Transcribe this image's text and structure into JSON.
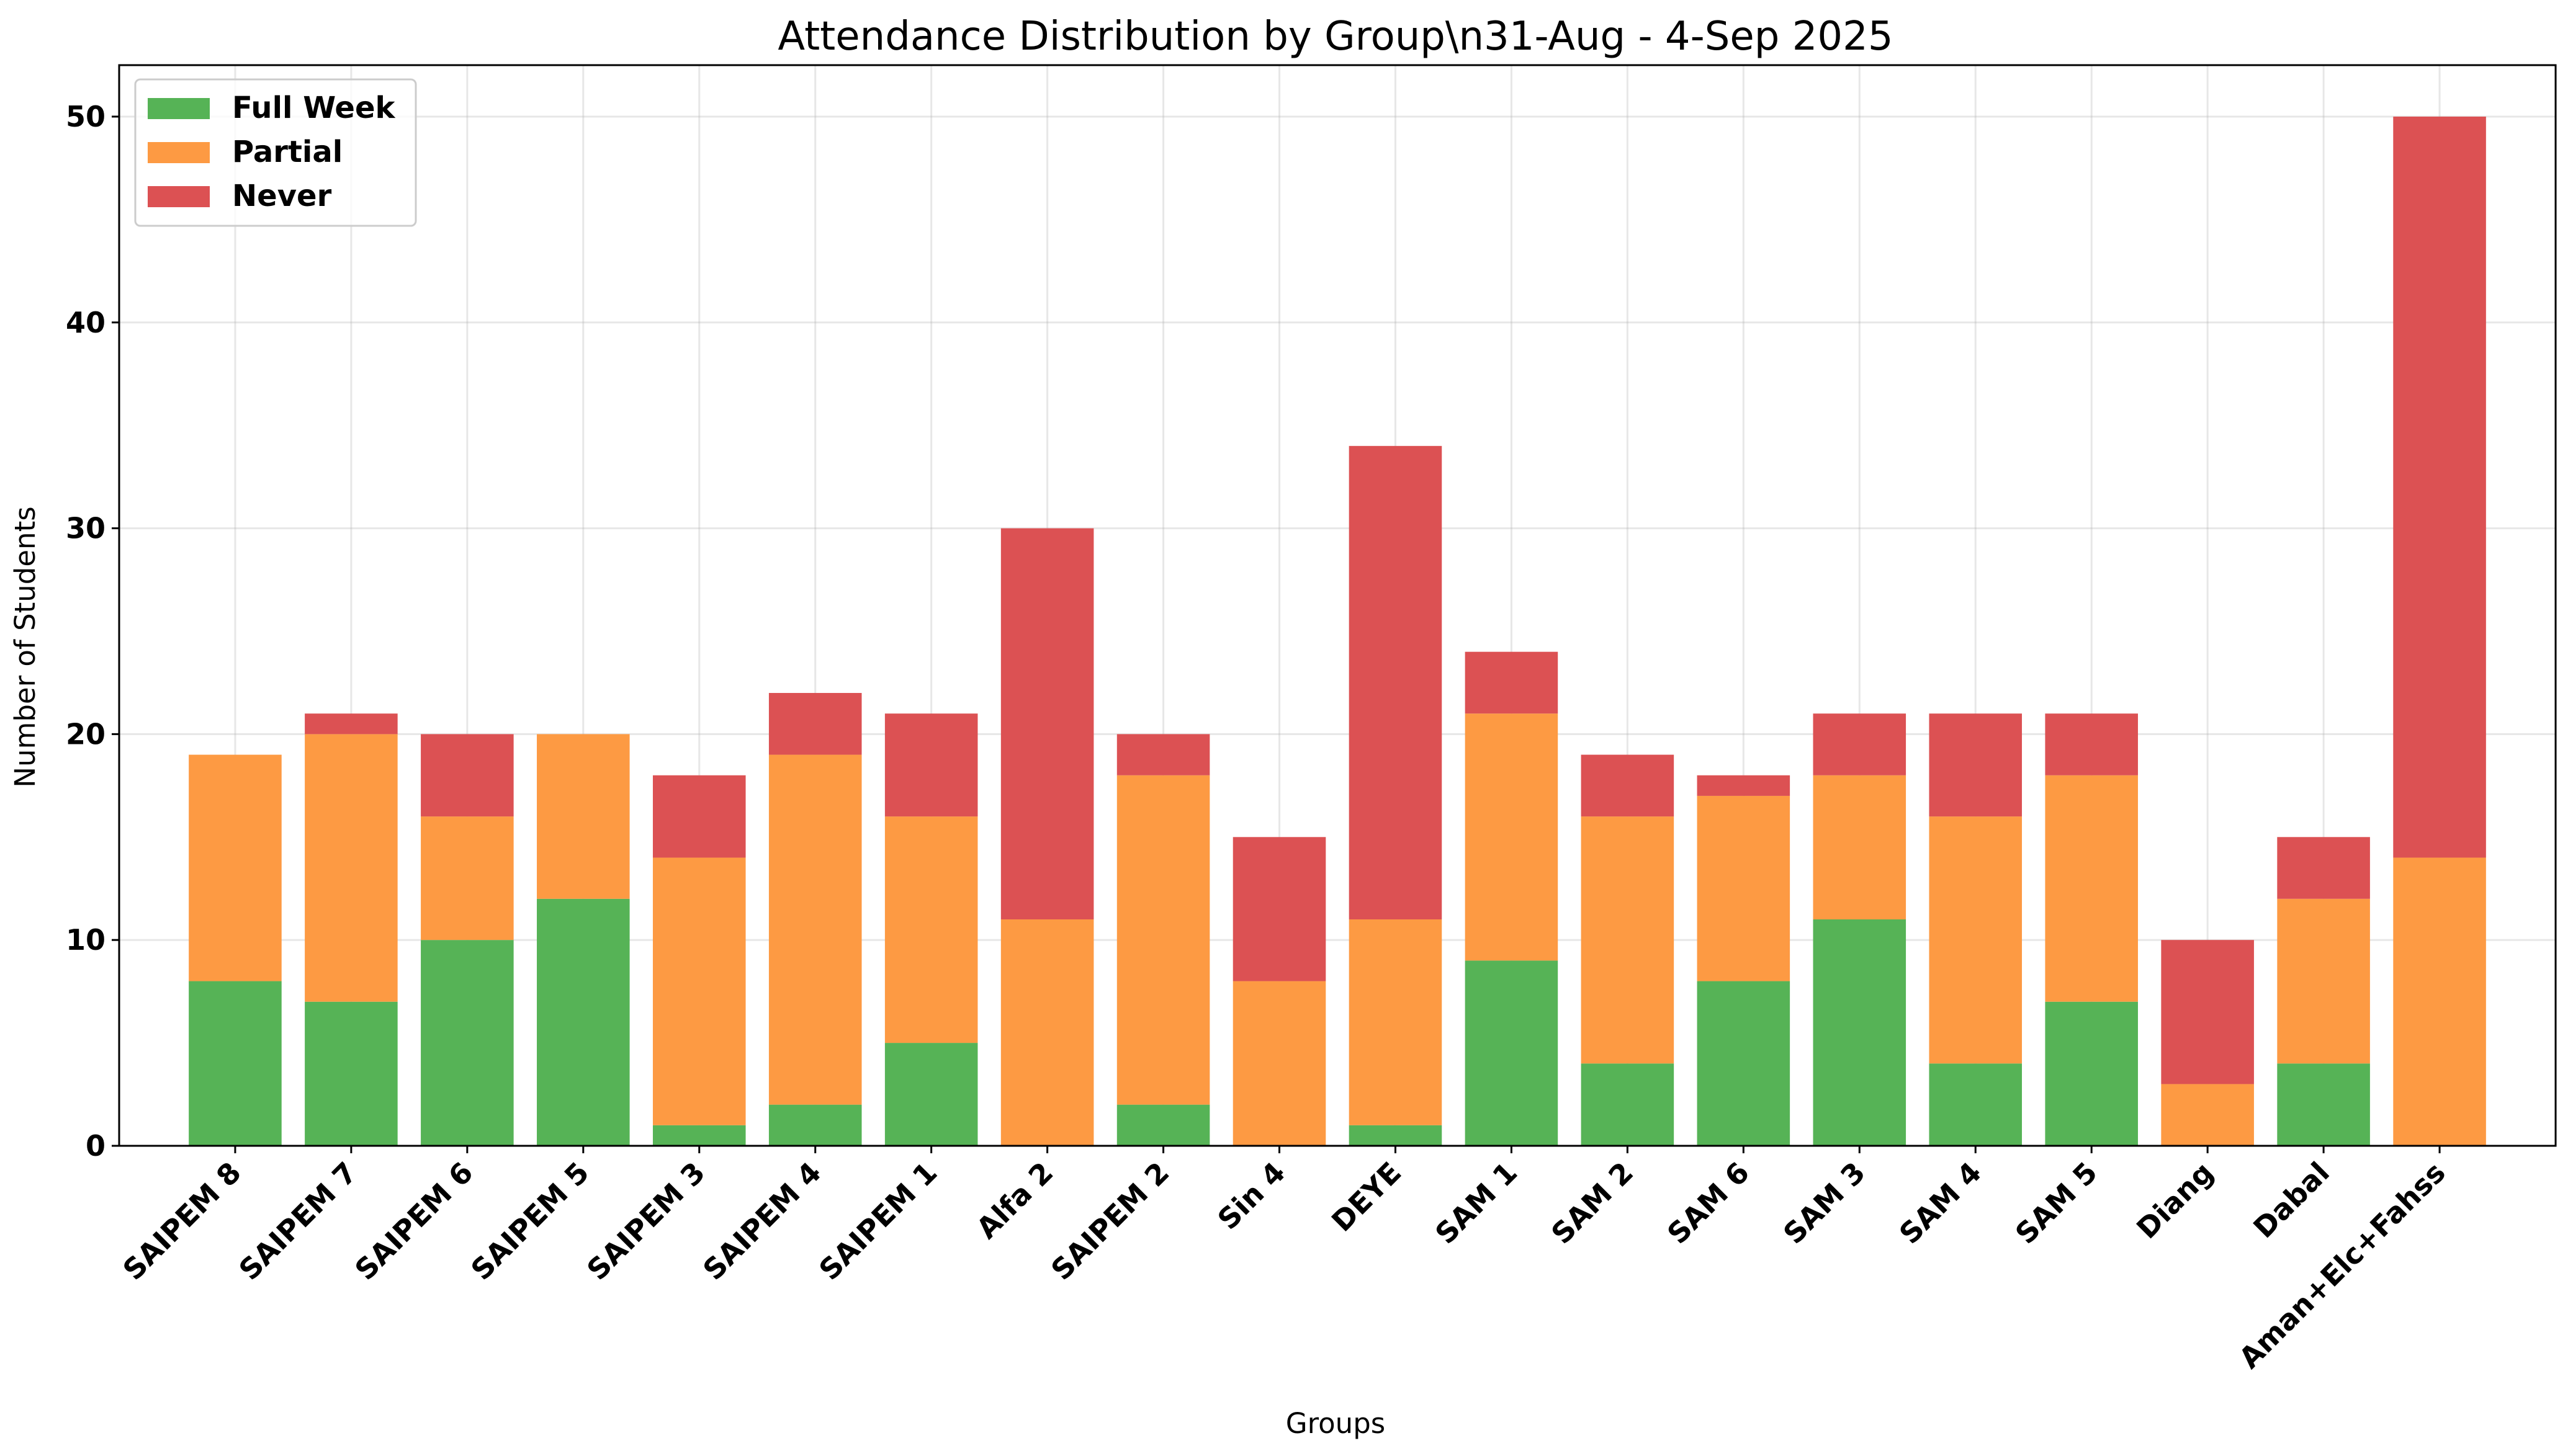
{
  "chart_data": {
    "type": "bar",
    "stacked": true,
    "title": "Attendance Distribution by Group\\n31-Aug - 4-Sep 2025",
    "xlabel": "Groups",
    "ylabel": "Number of Students",
    "ylim": [
      0,
      52.5
    ],
    "yticks": [
      0,
      10,
      20,
      30,
      40,
      50
    ],
    "grid": true,
    "legend_position": "top-left",
    "categories": [
      "SAIPEM 8",
      "SAIPEM 7",
      "SAIPEM 6",
      "SAIPEM 5",
      "SAIPEM 3",
      "SAIPEM 4",
      "SAIPEM 1",
      "Alfa 2",
      "SAIPEM 2",
      "Sin 4",
      "DEYE",
      "SAM 1",
      "SAM 2",
      "SAM 6",
      "SAM 3",
      "SAM 4",
      "SAM 5",
      "Diang",
      "Dabal",
      "Aman+Elc+Fahss"
    ],
    "series": [
      {
        "name": "Full Week",
        "color": "#56b356",
        "values": [
          8,
          7,
          10,
          12,
          1,
          2,
          5,
          0,
          2,
          0,
          1,
          9,
          4,
          8,
          11,
          4,
          7,
          0,
          4,
          0
        ]
      },
      {
        "name": "Partial",
        "color": "#fd9a43",
        "values": [
          11,
          13,
          6,
          8,
          13,
          17,
          11,
          11,
          16,
          8,
          10,
          12,
          12,
          9,
          7,
          12,
          11,
          3,
          8,
          14
        ]
      },
      {
        "name": "Never",
        "color": "#dc5153",
        "values": [
          0,
          1,
          4,
          0,
          4,
          3,
          5,
          19,
          2,
          7,
          23,
          3,
          3,
          1,
          3,
          5,
          3,
          7,
          3,
          36
        ]
      }
    ]
  }
}
